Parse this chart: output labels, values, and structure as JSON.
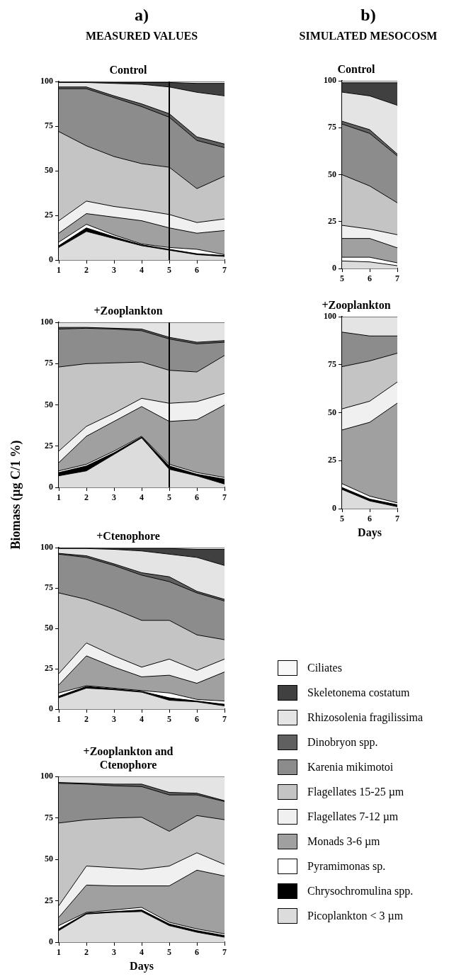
{
  "chart_data": [
    {
      "type": "area",
      "stacked": true,
      "title": "Control",
      "annotations": [
        "a)",
        "MEASURED VALUES"
      ],
      "x": [
        1,
        2,
        3,
        4,
        5,
        6,
        7
      ],
      "xlim": [
        1,
        7
      ],
      "xticks": [
        1,
        2,
        3,
        4,
        5,
        6,
        7
      ],
      "ylim": [
        0,
        100
      ],
      "yticks": [
        0,
        25,
        50,
        75,
        100
      ],
      "marker": "none",
      "ref_lines": [
        {
          "axis": "x",
          "value": 5,
          "color": "#000000"
        }
      ],
      "series": [
        {
          "color": "#dcdcdc",
          "values": [
            7,
            16,
            12,
            8,
            5.5,
            3,
            2
          ]
        },
        {
          "color": "#000000",
          "values": [
            1,
            2,
            1,
            0.5,
            0.5,
            0.5,
            0.5
          ]
        },
        {
          "color": "#ffffff",
          "values": [
            2,
            2,
            1,
            0.5,
            1,
            2.5,
            0.5
          ]
        },
        {
          "color": "#a0a0a0",
          "values": [
            5,
            6,
            10,
            13,
            11,
            9,
            13.5
          ]
        },
        {
          "color": "#f0f0f0",
          "values": [
            7,
            7,
            6,
            6,
            7.5,
            6,
            6.5
          ]
        },
        {
          "color": "#c4c4c4",
          "values": [
            50,
            31,
            28,
            26,
            26.5,
            19,
            24
          ]
        },
        {
          "color": "#8c8c8c",
          "values": [
            24,
            32,
            33,
            32,
            28,
            27,
            16
          ]
        },
        {
          "color": "#606060",
          "values": [
            1,
            1,
            1,
            1.5,
            2,
            2,
            2
          ]
        },
        {
          "color": "#e4e4e4",
          "values": [
            2.5,
            2.5,
            7,
            11,
            15,
            25,
            27
          ]
        },
        {
          "color": "#404040",
          "values": [
            0.3,
            0.3,
            0.5,
            1,
            2.5,
            5,
            7
          ]
        },
        {
          "color": "#f8f8f8",
          "values": [
            0.2,
            0.2,
            0.5,
            0.5,
            0.5,
            1,
            1
          ]
        }
      ]
    },
    {
      "type": "area",
      "stacked": true,
      "title": "+Zooplankton",
      "ylabel": "Biomass (µg C/1 %)",
      "x": [
        1,
        2,
        3,
        4,
        5,
        6,
        7
      ],
      "xlim": [
        1,
        7
      ],
      "xticks": [
        1,
        2,
        3,
        4,
        5,
        6,
        7
      ],
      "ylim": [
        0,
        100
      ],
      "yticks": [
        0,
        25,
        50,
        75,
        100
      ],
      "marker": "none",
      "ref_lines": [
        {
          "axis": "x",
          "value": 5,
          "color": "#000000"
        }
      ],
      "series": [
        {
          "color": "#dcdcdc",
          "values": [
            7,
            10,
            20,
            30,
            11,
            7,
            2
          ]
        },
        {
          "color": "#000000",
          "values": [
            2,
            3,
            1,
            0.5,
            2,
            1,
            3
          ]
        },
        {
          "color": "#ffffff",
          "values": [
            1,
            1,
            1,
            0.5,
            1,
            1,
            1
          ]
        },
        {
          "color": "#a0a0a0",
          "values": [
            5,
            17,
            18,
            18,
            26,
            32,
            44
          ]
        },
        {
          "color": "#f0f0f0",
          "values": [
            7,
            6,
            5,
            5,
            11,
            11,
            7
          ]
        },
        {
          "color": "#c4c4c4",
          "values": [
            51,
            38,
            30.5,
            22,
            20,
            18,
            23
          ]
        },
        {
          "color": "#8c8c8c",
          "values": [
            23,
            21.5,
            20.5,
            19,
            19,
            17,
            8
          ]
        },
        {
          "color": "#606060",
          "values": [
            1,
            0.5,
            0.5,
            1,
            1,
            1,
            1
          ]
        },
        {
          "color": "#e4e4e4",
          "values": [
            3,
            3,
            3.5,
            4,
            9,
            12,
            11
          ]
        }
      ]
    },
    {
      "type": "area",
      "stacked": true,
      "title": "+Ctenophore",
      "legend": "right",
      "x": [
        1,
        2,
        3,
        4,
        5,
        6,
        7
      ],
      "xlim": [
        1,
        7
      ],
      "xticks": [
        1,
        2,
        3,
        4,
        5,
        6,
        7
      ],
      "ylim": [
        0,
        100
      ],
      "yticks": [
        0,
        25,
        50,
        75,
        100
      ],
      "marker": "none",
      "series": [
        {
          "name": "Picoplankton < 3 µm",
          "color": "#dcdcdc",
          "values": [
            7,
            13,
            12,
            10.5,
            5.5,
            4.5,
            2
          ]
        },
        {
          "name": "Chrysochromulina spp.",
          "color": "#000000",
          "values": [
            1,
            1,
            0.5,
            0.5,
            1.5,
            0.5,
            1
          ]
        },
        {
          "name": "Pyramimonas sp.",
          "color": "#ffffff",
          "values": [
            2,
            0.5,
            0.5,
            0.5,
            3,
            1,
            2
          ]
        },
        {
          "name": "Monads 3-6 µm",
          "color": "#a0a0a0",
          "values": [
            5,
            18.5,
            13,
            8.5,
            11,
            10,
            18
          ]
        },
        {
          "name": "Flagellates 7-12 µm",
          "color": "#f0f0f0",
          "values": [
            7,
            8,
            7,
            6,
            10,
            8,
            8
          ]
        },
        {
          "name": "Flagellates 15-25 µm",
          "color": "#c4c4c4",
          "values": [
            50,
            27,
            29,
            29,
            24,
            22,
            12
          ]
        },
        {
          "name": "Karenia mikimotoi",
          "color": "#8c8c8c",
          "values": [
            24,
            26,
            27,
            28,
            24,
            26,
            24
          ]
        },
        {
          "name": "Dinobryon spp.",
          "color": "#606060",
          "values": [
            0.5,
            1,
            1,
            1.5,
            3,
            1,
            1
          ]
        },
        {
          "name": "Rhizosolenia fragilissima",
          "color": "#e4e4e4",
          "values": [
            3,
            4.5,
            9,
            13.5,
            14,
            21,
            21
          ]
        },
        {
          "name": "Skeletonema costatum",
          "color": "#404040",
          "values": [
            0.3,
            0.3,
            0.5,
            1.5,
            3.5,
            5,
            10
          ]
        },
        {
          "name": "Ciliates",
          "color": "#f8f8f8",
          "values": [
            0.2,
            0.2,
            0.5,
            0.5,
            0.5,
            1,
            1
          ]
        }
      ]
    },
    {
      "type": "area",
      "stacked": true,
      "title": "+Zooplankton and Ctenophore",
      "xlabel": "Days",
      "x": [
        1,
        2,
        3,
        4,
        5,
        6,
        7
      ],
      "xlim": [
        1,
        7
      ],
      "xticks": [
        1,
        2,
        3,
        4,
        5,
        6,
        7
      ],
      "ylim": [
        0,
        100
      ],
      "yticks": [
        0,
        25,
        50,
        75,
        100
      ],
      "marker": "none",
      "series": [
        {
          "color": "#dcdcdc",
          "values": [
            7,
            17,
            18,
            18.5,
            10,
            6,
            3
          ]
        },
        {
          "color": "#000000",
          "values": [
            1,
            0.5,
            0.5,
            1,
            1,
            1,
            1
          ]
        },
        {
          "color": "#ffffff",
          "values": [
            2,
            0.5,
            1,
            1.5,
            1,
            1,
            1
          ]
        },
        {
          "color": "#a0a0a0",
          "values": [
            5,
            16.5,
            14.5,
            13,
            22,
            35.5,
            35
          ]
        },
        {
          "color": "#f0f0f0",
          "values": [
            7,
            11.5,
            11,
            10,
            12,
            10.5,
            7
          ]
        },
        {
          "color": "#c4c4c4",
          "values": [
            50,
            28,
            30,
            31.5,
            21,
            22.5,
            27
          ]
        },
        {
          "color": "#8c8c8c",
          "values": [
            24,
            21.5,
            19.5,
            18.5,
            22,
            12.5,
            11
          ]
        },
        {
          "color": "#606060",
          "values": [
            0.5,
            0.5,
            1,
            1.5,
            1.5,
            1,
            0.5
          ]
        },
        {
          "color": "#e4e4e4",
          "values": [
            3.5,
            4,
            4.5,
            4.5,
            9.5,
            10,
            14.5
          ]
        }
      ]
    },
    {
      "type": "area",
      "stacked": true,
      "title": "Control",
      "annotations": [
        "b)",
        "SIMULATED MESOCOSM"
      ],
      "x": [
        5,
        6,
        7
      ],
      "xlim": [
        5,
        7
      ],
      "xticks": [
        5,
        6,
        7
      ],
      "ylim": [
        0,
        100
      ],
      "yticks": [
        0,
        25,
        50,
        75,
        100
      ],
      "marker": "none",
      "series": [
        {
          "color": "#dcdcdc",
          "values": [
            4,
            3.5,
            1.5
          ]
        },
        {
          "color": "#ffffff",
          "values": [
            2,
            2.5,
            1.5
          ]
        },
        {
          "color": "#a0a0a0",
          "values": [
            10,
            10,
            8
          ]
        },
        {
          "color": "#f0f0f0",
          "values": [
            7,
            5,
            7
          ]
        },
        {
          "color": "#c4c4c4",
          "values": [
            27,
            23,
            17
          ]
        },
        {
          "color": "#8c8c8c",
          "values": [
            27,
            28,
            25
          ]
        },
        {
          "color": "#606060",
          "values": [
            1.5,
            2,
            1
          ]
        },
        {
          "color": "#e4e4e4",
          "values": [
            15.5,
            18,
            26
          ]
        },
        {
          "color": "#404040",
          "values": [
            5,
            7,
            12
          ]
        },
        {
          "color": "#f8f8f8",
          "values": [
            1,
            1,
            1
          ]
        }
      ]
    },
    {
      "type": "area",
      "stacked": true,
      "title": "+Zooplankton",
      "xlabel": "Days",
      "x": [
        5,
        6,
        7
      ],
      "xlim": [
        5,
        7
      ],
      "xticks": [
        5,
        6,
        7
      ],
      "ylim": [
        0,
        100
      ],
      "yticks": [
        0,
        25,
        50,
        75,
        100
      ],
      "marker": "none",
      "series": [
        {
          "color": "#dcdcdc",
          "values": [
            10,
            4,
            1
          ]
        },
        {
          "color": "#000000",
          "values": [
            1,
            1,
            1
          ]
        },
        {
          "color": "#ffffff",
          "values": [
            2,
            1.5,
            1
          ]
        },
        {
          "color": "#a0a0a0",
          "values": [
            28,
            38.5,
            52
          ]
        },
        {
          "color": "#f0f0f0",
          "values": [
            11,
            11,
            11
          ]
        },
        {
          "color": "#c4c4c4",
          "values": [
            22,
            21,
            15
          ]
        },
        {
          "color": "#8c8c8c",
          "values": [
            18,
            13,
            9
          ]
        },
        {
          "color": "#e4e4e4",
          "values": [
            8,
            10,
            10
          ]
        }
      ]
    }
  ]
}
